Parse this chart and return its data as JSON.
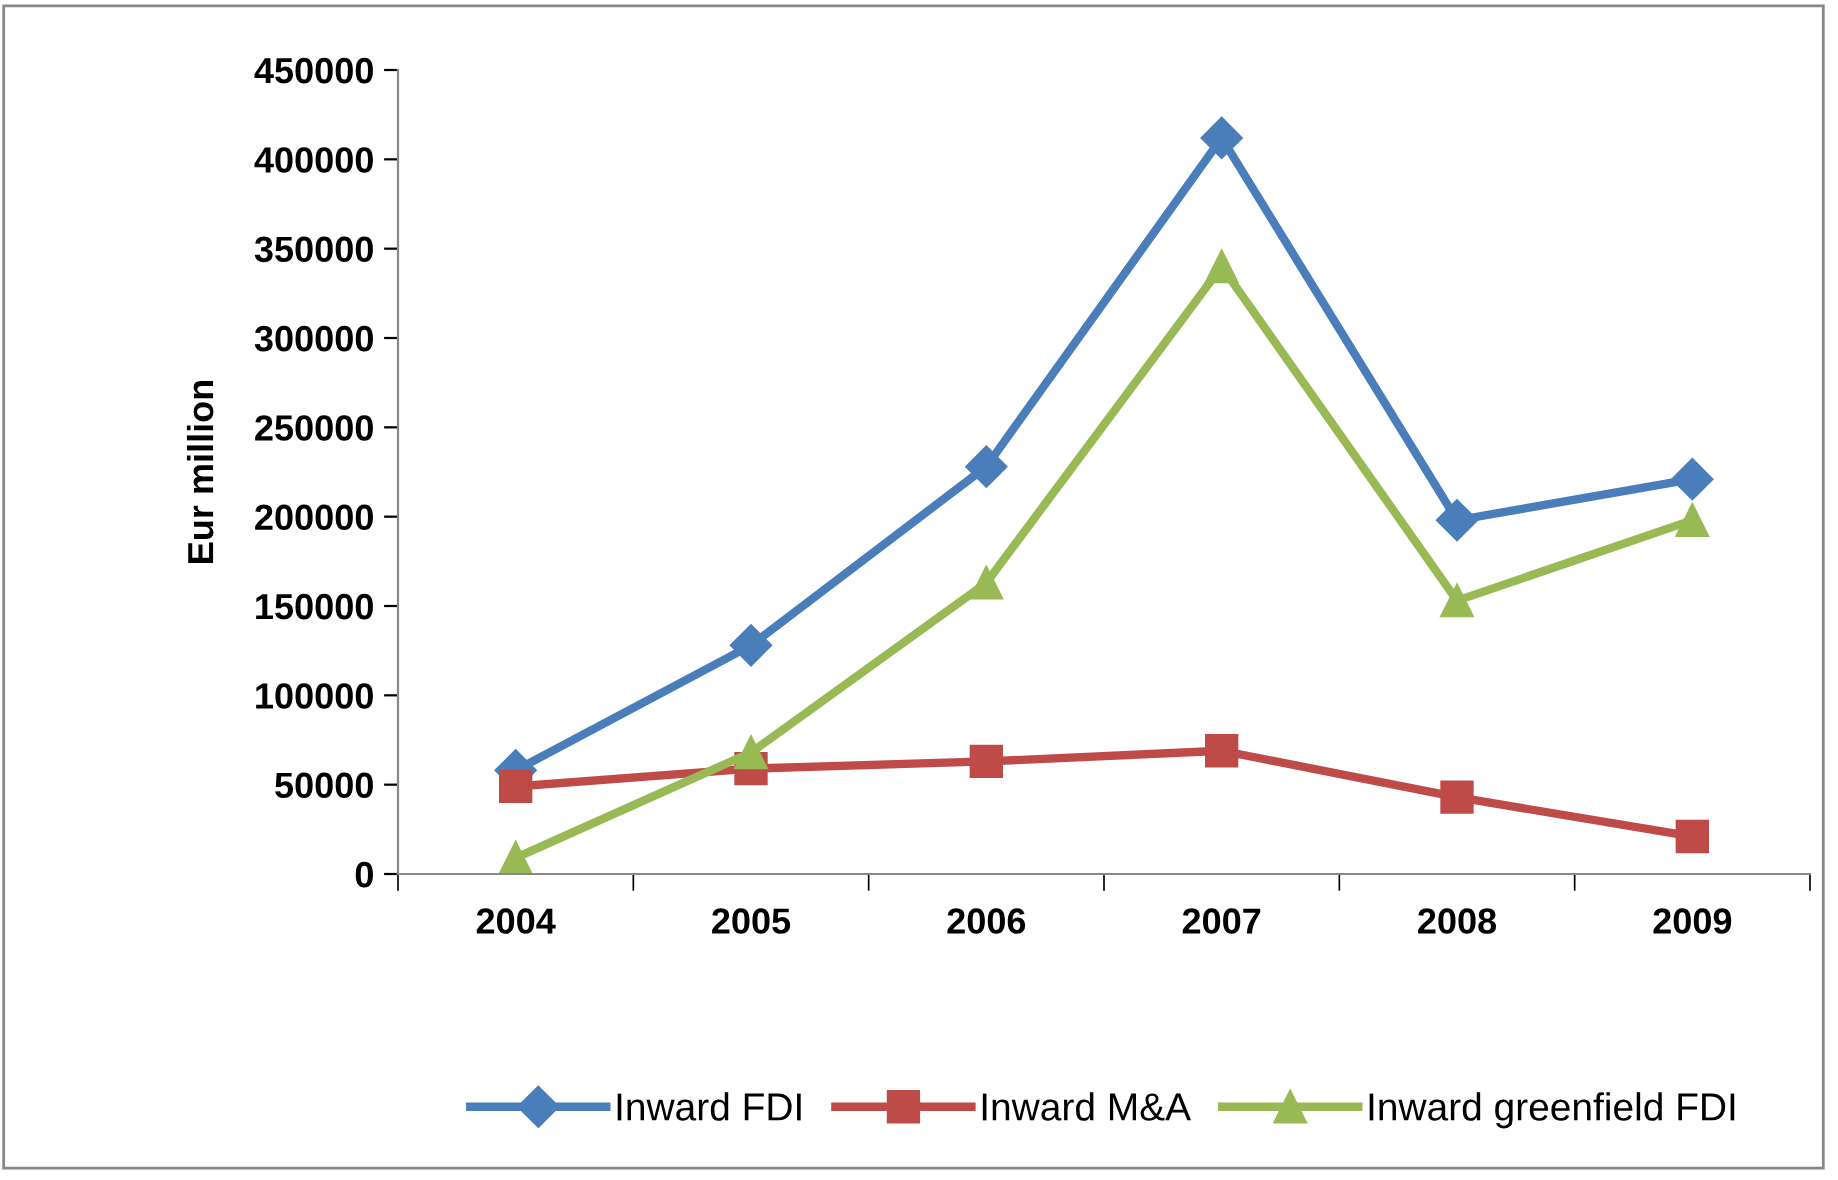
{
  "chart_data": {
    "type": "line",
    "ylabel": "Eur million",
    "categories": [
      "2004",
      "2005",
      "2006",
      "2007",
      "2008",
      "2009"
    ],
    "series": [
      {
        "name": "Inward FDI",
        "color": "#4a7ebb",
        "marker": "diamond",
        "values": [
          58000,
          128000,
          228000,
          412000,
          198000,
          221000
        ]
      },
      {
        "name": "Inward M&A",
        "color": "#be4b48",
        "marker": "square",
        "values": [
          49000,
          59000,
          63000,
          69000,
          43000,
          21000
        ]
      },
      {
        "name": "Inward greenfield FDI",
        "color": "#98b954",
        "marker": "triangle",
        "values": [
          9000,
          68000,
          163000,
          340000,
          153000,
          198000
        ]
      }
    ],
    "ylim": [
      0,
      450000
    ],
    "yticks": [
      0,
      50000,
      100000,
      150000,
      200000,
      250000,
      300000,
      350000,
      400000,
      450000
    ],
    "grid": false,
    "legend": "bottom",
    "line_style": "solid"
  }
}
